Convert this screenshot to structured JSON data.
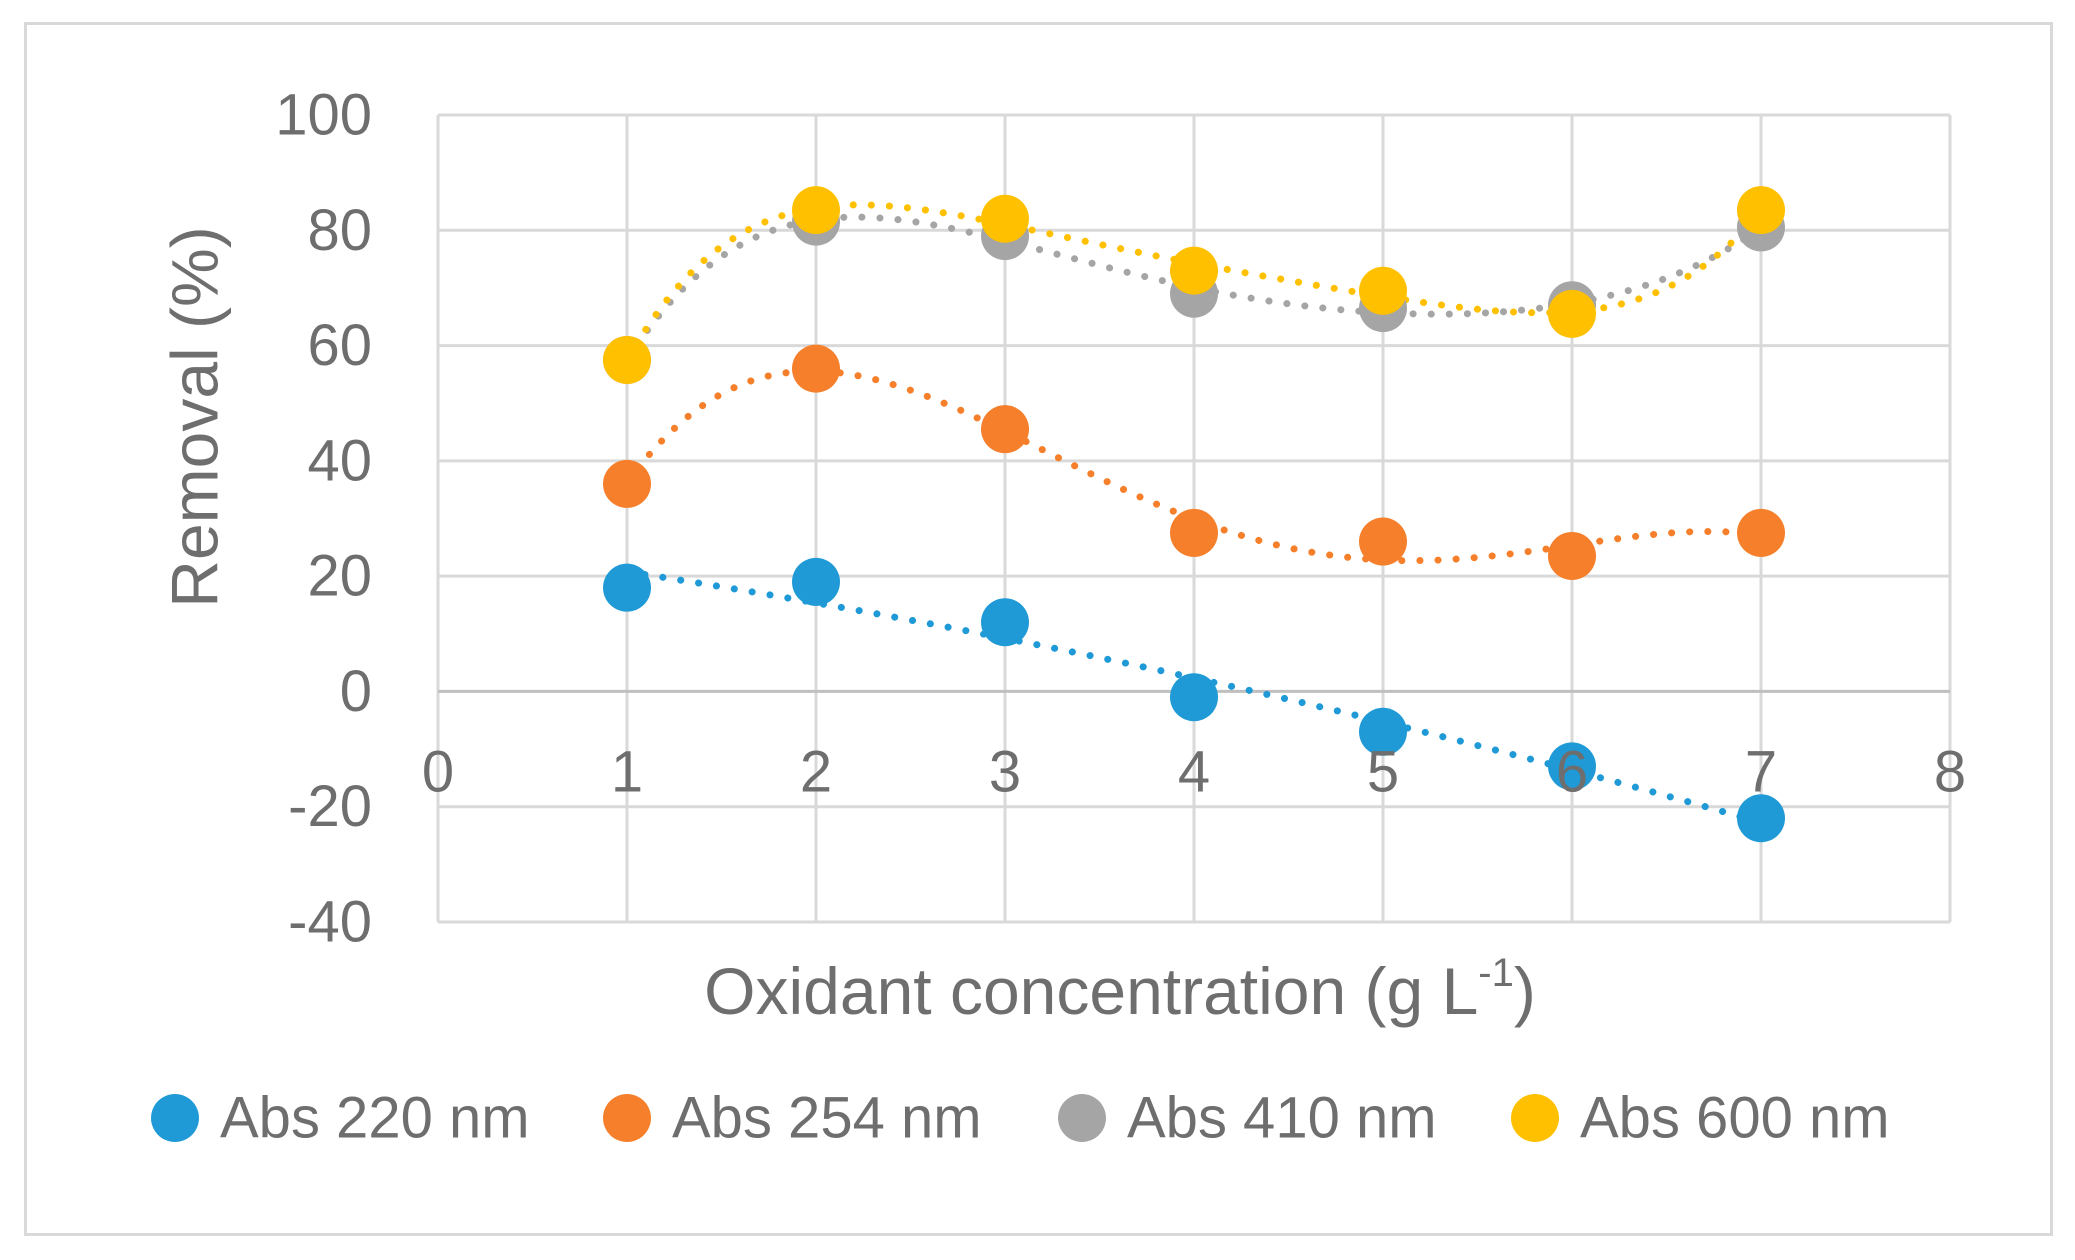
{
  "chart_data": {
    "type": "scatter",
    "x": [
      1,
      2,
      3,
      4,
      5,
      6,
      7
    ],
    "series": [
      {
        "name": "Abs 220 nm",
        "color": "#1f9ad6",
        "values": [
          18,
          19,
          12,
          -1,
          -7,
          -13,
          -22
        ]
      },
      {
        "name": "Abs 254 nm",
        "color": "#f57f2a",
        "values": [
          36,
          56,
          45.5,
          27.5,
          26,
          23.5,
          27.5
        ]
      },
      {
        "name": "Abs 410 nm",
        "color": "#a5a5a5",
        "values": [
          57.5,
          81.5,
          79,
          69,
          66.5,
          67,
          80.5
        ]
      },
      {
        "name": "Abs 600 nm",
        "color": "#ffc000",
        "values": [
          57.5,
          83.5,
          82,
          73,
          69.5,
          65.5,
          83.5
        ]
      }
    ],
    "trendlines": "polynomial, dotted, one per series",
    "xlabel_main": "Oxidant concentration (g L",
    "xlabel_sup": "-1",
    "xlabel_end": ")",
    "ylabel": "Removal (%)",
    "xlim": [
      0,
      8
    ],
    "ylim": [
      -40,
      100
    ],
    "x_ticks": [
      "0",
      "1",
      "2",
      "3",
      "4",
      "5",
      "6",
      "7",
      "8"
    ],
    "y_ticks": [
      "100",
      "80",
      "60",
      "40",
      "20",
      "0",
      "-20",
      "-40"
    ],
    "grid": true,
    "legend_position": "bottom"
  }
}
